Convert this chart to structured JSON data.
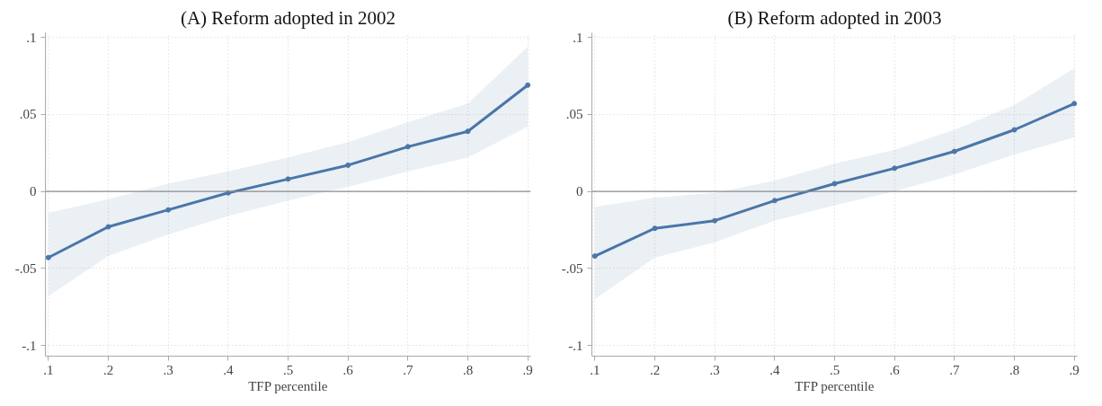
{
  "chart_data": [
    {
      "type": "line",
      "title": "(A) Reform adopted in 2002",
      "xlabel": "TFP percentile",
      "x": [
        0.1,
        0.2,
        0.3,
        0.4,
        0.5,
        0.6,
        0.7,
        0.8,
        0.9
      ],
      "series": [
        {
          "color": "#4a76a8",
          "values": [
            -0.043,
            -0.023,
            -0.012,
            -0.001,
            0.008,
            0.017,
            0.029,
            0.039,
            0.069
          ],
          "lower": [
            -0.068,
            -0.042,
            -0.028,
            -0.016,
            -0.006,
            0.003,
            0.013,
            0.022,
            0.042
          ],
          "upper": [
            -0.014,
            -0.005,
            0.005,
            0.013,
            0.022,
            0.032,
            0.045,
            0.057,
            0.094
          ]
        }
      ],
      "marker": "circle",
      "line_style": "solid",
      "grid": true,
      "xlim": [
        0.095,
        0.905
      ],
      "ylim": [
        -0.107,
        0.103
      ],
      "xticks": [
        {
          "value": 0.1,
          "label": ".1"
        },
        {
          "value": 0.2,
          "label": ".2"
        },
        {
          "value": 0.3,
          "label": ".3"
        },
        {
          "value": 0.4,
          "label": ".4"
        },
        {
          "value": 0.5,
          "label": ".5"
        },
        {
          "value": 0.6,
          "label": ".6"
        },
        {
          "value": 0.7,
          "label": ".7"
        },
        {
          "value": 0.8,
          "label": ".8"
        },
        {
          "value": 0.9,
          "label": ".9"
        }
      ],
      "yticks": [
        {
          "value": -0.1,
          "label": "-.1"
        },
        {
          "value": -0.05,
          "label": "-.05"
        },
        0,
        {
          "value": 0.05,
          "label": ".05"
        },
        {
          "value": 0.1,
          "label": ".1"
        }
      ],
      "ref_lines": [
        {
          "axis": "y",
          "value": 0,
          "color": "#8c8c8c"
        }
      ]
    },
    {
      "type": "line",
      "title": "(B) Reform adopted in 2003",
      "xlabel": "TFP percentile",
      "x": [
        0.1,
        0.2,
        0.3,
        0.4,
        0.5,
        0.6,
        0.7,
        0.8,
        0.9
      ],
      "series": [
        {
          "color": "#4a76a8",
          "values": [
            -0.042,
            -0.024,
            -0.019,
            -0.006,
            0.005,
            0.015,
            0.026,
            0.04,
            0.057
          ],
          "lower": [
            -0.07,
            -0.043,
            -0.033,
            -0.019,
            -0.009,
            0.0,
            0.011,
            0.024,
            0.035
          ],
          "upper": [
            -0.01,
            -0.004,
            -0.001,
            0.007,
            0.018,
            0.027,
            0.04,
            0.056,
            0.08
          ]
        }
      ],
      "marker": "circle",
      "line_style": "solid",
      "grid": true,
      "xlim": [
        0.095,
        0.905
      ],
      "ylim": [
        -0.107,
        0.103
      ],
      "xticks": [
        {
          "value": 0.1,
          "label": ".1"
        },
        {
          "value": 0.2,
          "label": ".2"
        },
        {
          "value": 0.3,
          "label": ".3"
        },
        {
          "value": 0.4,
          "label": ".4"
        },
        {
          "value": 0.5,
          "label": ".5"
        },
        {
          "value": 0.6,
          "label": ".6"
        },
        {
          "value": 0.7,
          "label": ".7"
        },
        {
          "value": 0.8,
          "label": ".8"
        },
        {
          "value": 0.9,
          "label": ".9"
        }
      ],
      "yticks": [
        {
          "value": -0.1,
          "label": "-.1"
        },
        {
          "value": -0.05,
          "label": "-.05"
        },
        0,
        {
          "value": 0.05,
          "label": ".05"
        },
        {
          "value": 0.1,
          "label": ".1"
        }
      ],
      "ref_lines": [
        {
          "axis": "y",
          "value": 0,
          "color": "#8c8c8c"
        }
      ]
    }
  ]
}
